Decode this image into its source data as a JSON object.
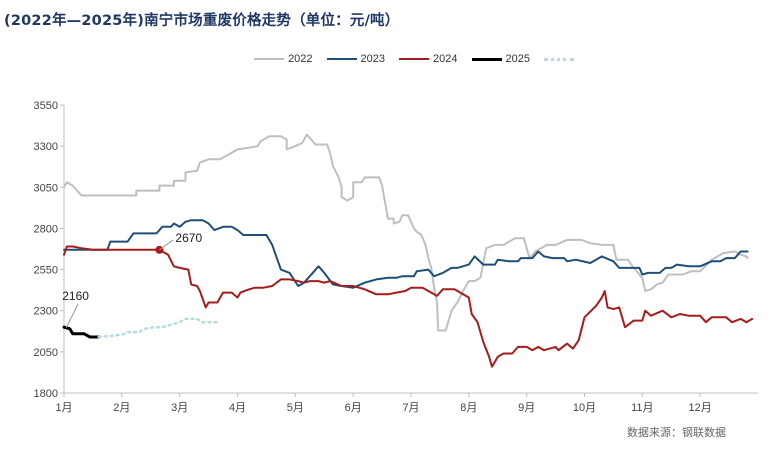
{
  "title": "(2022年—2025年)南宁市场重废价格走势（单位：元/吨）",
  "source": "数据来源：钢联数据",
  "chart_data": {
    "type": "line",
    "title": "(2022年—2025年)南宁市场重废价格走势（单位：元/吨）",
    "xlabel": "",
    "ylabel": "",
    "ylim": [
      1800,
      3550
    ],
    "yticks": [
      1800,
      2050,
      2300,
      2550,
      2800,
      3050,
      3300,
      3550
    ],
    "xlim": [
      1,
      13
    ],
    "xticks": [
      {
        "v": 1,
        "label": "1月"
      },
      {
        "v": 2,
        "label": "2月"
      },
      {
        "v": 3,
        "label": "3月"
      },
      {
        "v": 4,
        "label": "4月"
      },
      {
        "v": 5,
        "label": "5月"
      },
      {
        "v": 6,
        "label": "6月"
      },
      {
        "v": 7,
        "label": "7月"
      },
      {
        "v": 8,
        "label": "8月"
      },
      {
        "v": 9,
        "label": "9月"
      },
      {
        "v": 10,
        "label": "10月"
      },
      {
        "v": 11,
        "label": "11月"
      },
      {
        "v": 12,
        "label": "12月"
      }
    ],
    "grid": false,
    "legend_position": "top-right",
    "series": [
      {
        "name": "2022",
        "color": "#bfbfbf",
        "style": "solid",
        "points": [
          [
            1.0,
            3050
          ],
          [
            1.05,
            3080
          ],
          [
            1.15,
            3060
          ],
          [
            1.3,
            3000
          ],
          [
            1.6,
            3000
          ],
          [
            2.0,
            3000
          ],
          [
            2.25,
            3000
          ],
          [
            2.25,
            3030
          ],
          [
            2.5,
            3030
          ],
          [
            2.65,
            3030
          ],
          [
            2.65,
            3060
          ],
          [
            2.9,
            3060
          ],
          [
            2.9,
            3090
          ],
          [
            3.1,
            3090
          ],
          [
            3.1,
            3140
          ],
          [
            3.3,
            3150
          ],
          [
            3.35,
            3200
          ],
          [
            3.5,
            3220
          ],
          [
            3.7,
            3220
          ],
          [
            3.85,
            3250
          ],
          [
            4.0,
            3280
          ],
          [
            4.2,
            3290
          ],
          [
            4.35,
            3300
          ],
          [
            4.4,
            3330
          ],
          [
            4.55,
            3360
          ],
          [
            4.75,
            3360
          ],
          [
            4.85,
            3340
          ],
          [
            4.85,
            3280
          ],
          [
            5.0,
            3300
          ],
          [
            5.12,
            3320
          ],
          [
            5.2,
            3370
          ],
          [
            5.35,
            3310
          ],
          [
            5.45,
            3310
          ],
          [
            5.55,
            3310
          ],
          [
            5.6,
            3260
          ],
          [
            5.65,
            3180
          ],
          [
            5.75,
            3110
          ],
          [
            5.8,
            3050
          ],
          [
            5.8,
            2990
          ],
          [
            5.9,
            2970
          ],
          [
            6.0,
            2990
          ],
          [
            6.0,
            3080
          ],
          [
            6.15,
            3080
          ],
          [
            6.2,
            3110
          ],
          [
            6.3,
            3110
          ],
          [
            6.45,
            3110
          ],
          [
            6.5,
            3060
          ],
          [
            6.55,
            2960
          ],
          [
            6.6,
            2860
          ],
          [
            6.7,
            2860
          ],
          [
            6.7,
            2830
          ],
          [
            6.8,
            2840
          ],
          [
            6.85,
            2880
          ],
          [
            6.95,
            2880
          ],
          [
            7.0,
            2840
          ],
          [
            7.05,
            2800
          ],
          [
            7.1,
            2780
          ],
          [
            7.18,
            2760
          ],
          [
            7.25,
            2700
          ],
          [
            7.3,
            2620
          ],
          [
            7.35,
            2560
          ],
          [
            7.4,
            2440
          ],
          [
            7.45,
            2350
          ],
          [
            7.47,
            2180
          ],
          [
            7.6,
            2180
          ],
          [
            7.7,
            2300
          ],
          [
            7.8,
            2350
          ],
          [
            7.9,
            2420
          ],
          [
            8.0,
            2480
          ],
          [
            8.1,
            2480
          ],
          [
            8.2,
            2500
          ],
          [
            8.3,
            2680
          ],
          [
            8.45,
            2700
          ],
          [
            8.6,
            2700
          ],
          [
            8.8,
            2740
          ],
          [
            8.95,
            2740
          ],
          [
            9.05,
            2620
          ],
          [
            9.15,
            2660
          ],
          [
            9.35,
            2700
          ],
          [
            9.5,
            2700
          ],
          [
            9.7,
            2730
          ],
          [
            9.95,
            2730
          ],
          [
            10.1,
            2710
          ],
          [
            10.3,
            2700
          ],
          [
            10.5,
            2700
          ],
          [
            10.55,
            2610
          ],
          [
            10.75,
            2610
          ],
          [
            10.85,
            2560
          ],
          [
            11.0,
            2500
          ],
          [
            11.05,
            2420
          ],
          [
            11.15,
            2430
          ],
          [
            11.25,
            2460
          ],
          [
            11.35,
            2470
          ],
          [
            11.45,
            2520
          ],
          [
            11.7,
            2520
          ],
          [
            11.85,
            2540
          ],
          [
            12.0,
            2540
          ],
          [
            12.2,
            2610
          ],
          [
            12.4,
            2650
          ],
          [
            12.6,
            2660
          ],
          [
            12.7,
            2640
          ],
          [
            12.8,
            2630
          ],
          [
            12.82,
            2620
          ]
        ]
      },
      {
        "name": "2023",
        "color": "#1f4e79",
        "style": "solid",
        "points": [
          [
            1.0,
            2670
          ],
          [
            1.2,
            2670
          ],
          [
            1.5,
            2670
          ],
          [
            1.75,
            2670
          ],
          [
            1.8,
            2720
          ],
          [
            2.1,
            2720
          ],
          [
            2.2,
            2770
          ],
          [
            2.6,
            2770
          ],
          [
            2.7,
            2810
          ],
          [
            2.85,
            2810
          ],
          [
            2.9,
            2830
          ],
          [
            3.0,
            2810
          ],
          [
            3.1,
            2840
          ],
          [
            3.2,
            2850
          ],
          [
            3.4,
            2850
          ],
          [
            3.5,
            2830
          ],
          [
            3.6,
            2790
          ],
          [
            3.75,
            2810
          ],
          [
            3.9,
            2810
          ],
          [
            4.0,
            2790
          ],
          [
            4.1,
            2760
          ],
          [
            4.5,
            2760
          ],
          [
            4.6,
            2700
          ],
          [
            4.75,
            2550
          ],
          [
            4.9,
            2530
          ],
          [
            5.05,
            2450
          ],
          [
            5.15,
            2470
          ],
          [
            5.3,
            2530
          ],
          [
            5.4,
            2570
          ],
          [
            5.5,
            2530
          ],
          [
            5.65,
            2460
          ],
          [
            5.8,
            2450
          ],
          [
            6.0,
            2440
          ],
          [
            6.2,
            2470
          ],
          [
            6.4,
            2490
          ],
          [
            6.6,
            2500
          ],
          [
            6.75,
            2500
          ],
          [
            6.85,
            2510
          ],
          [
            7.05,
            2510
          ],
          [
            7.1,
            2540
          ],
          [
            7.3,
            2550
          ],
          [
            7.4,
            2510
          ],
          [
            7.55,
            2530
          ],
          [
            7.7,
            2560
          ],
          [
            7.8,
            2560
          ],
          [
            8.0,
            2580
          ],
          [
            8.1,
            2630
          ],
          [
            8.25,
            2580
          ],
          [
            8.45,
            2580
          ],
          [
            8.5,
            2610
          ],
          [
            8.7,
            2600
          ],
          [
            8.85,
            2600
          ],
          [
            8.9,
            2620
          ],
          [
            9.1,
            2620
          ],
          [
            9.2,
            2660
          ],
          [
            9.3,
            2630
          ],
          [
            9.45,
            2620
          ],
          [
            9.65,
            2620
          ],
          [
            9.7,
            2600
          ],
          [
            9.85,
            2610
          ],
          [
            10.1,
            2590
          ],
          [
            10.3,
            2630
          ],
          [
            10.5,
            2600
          ],
          [
            10.6,
            2560
          ],
          [
            10.75,
            2560
          ],
          [
            10.95,
            2560
          ],
          [
            11.0,
            2520
          ],
          [
            11.1,
            2530
          ],
          [
            11.3,
            2530
          ],
          [
            11.4,
            2560
          ],
          [
            11.5,
            2560
          ],
          [
            11.6,
            2580
          ],
          [
            11.8,
            2570
          ],
          [
            12.0,
            2570
          ],
          [
            12.2,
            2600
          ],
          [
            12.35,
            2600
          ],
          [
            12.45,
            2620
          ],
          [
            12.6,
            2620
          ],
          [
            12.7,
            2660
          ],
          [
            12.82,
            2660
          ]
        ]
      },
      {
        "name": "2024",
        "color": "#a61c1c",
        "style": "solid",
        "points": [
          [
            1.0,
            2640
          ],
          [
            1.05,
            2690
          ],
          [
            1.15,
            2690
          ],
          [
            1.3,
            2680
          ],
          [
            1.5,
            2670
          ],
          [
            1.75,
            2670
          ],
          [
            2.0,
            2670
          ],
          [
            2.3,
            2670
          ],
          [
            2.6,
            2670
          ],
          [
            2.65,
            2670
          ],
          [
            2.8,
            2640
          ],
          [
            2.9,
            2570
          ],
          [
            3.0,
            2560
          ],
          [
            3.15,
            2550
          ],
          [
            3.2,
            2460
          ],
          [
            3.3,
            2450
          ],
          [
            3.35,
            2420
          ],
          [
            3.45,
            2320
          ],
          [
            3.5,
            2350
          ],
          [
            3.65,
            2350
          ],
          [
            3.75,
            2410
          ],
          [
            3.9,
            2410
          ],
          [
            4.0,
            2380
          ],
          [
            4.05,
            2410
          ],
          [
            4.2,
            2430
          ],
          [
            4.3,
            2440
          ],
          [
            4.45,
            2440
          ],
          [
            4.6,
            2450
          ],
          [
            4.75,
            2490
          ],
          [
            4.9,
            2490
          ],
          [
            5.05,
            2480
          ],
          [
            5.15,
            2470
          ],
          [
            5.25,
            2480
          ],
          [
            5.4,
            2480
          ],
          [
            5.5,
            2470
          ],
          [
            5.6,
            2480
          ],
          [
            5.8,
            2450
          ],
          [
            6.0,
            2450
          ],
          [
            6.2,
            2430
          ],
          [
            6.4,
            2400
          ],
          [
            6.6,
            2400
          ],
          [
            6.75,
            2410
          ],
          [
            6.9,
            2420
          ],
          [
            7.0,
            2440
          ],
          [
            7.2,
            2440
          ],
          [
            7.35,
            2410
          ],
          [
            7.45,
            2390
          ],
          [
            7.55,
            2430
          ],
          [
            7.75,
            2430
          ],
          [
            7.9,
            2400
          ],
          [
            8.0,
            2380
          ],
          [
            8.05,
            2280
          ],
          [
            8.15,
            2230
          ],
          [
            8.25,
            2110
          ],
          [
            8.35,
            2020
          ],
          [
            8.4,
            1960
          ],
          [
            8.5,
            2020
          ],
          [
            8.6,
            2040
          ],
          [
            8.75,
            2040
          ],
          [
            8.85,
            2080
          ],
          [
            9.0,
            2080
          ],
          [
            9.1,
            2060
          ],
          [
            9.2,
            2080
          ],
          [
            9.3,
            2060
          ],
          [
            9.5,
            2080
          ],
          [
            9.55,
            2060
          ],
          [
            9.7,
            2100
          ],
          [
            9.8,
            2070
          ],
          [
            9.9,
            2120
          ],
          [
            10.0,
            2260
          ],
          [
            10.2,
            2330
          ],
          [
            10.3,
            2380
          ],
          [
            10.35,
            2420
          ],
          [
            10.4,
            2320
          ],
          [
            10.5,
            2310
          ],
          [
            10.6,
            2320
          ],
          [
            10.7,
            2200
          ],
          [
            10.85,
            2240
          ],
          [
            11.0,
            2240
          ],
          [
            11.05,
            2300
          ],
          [
            11.15,
            2270
          ],
          [
            11.35,
            2300
          ],
          [
            11.5,
            2260
          ],
          [
            11.65,
            2280
          ],
          [
            11.8,
            2270
          ],
          [
            12.0,
            2270
          ],
          [
            12.1,
            2230
          ],
          [
            12.2,
            2260
          ],
          [
            12.45,
            2260
          ],
          [
            12.55,
            2230
          ],
          [
            12.7,
            2250
          ],
          [
            12.8,
            2230
          ],
          [
            12.9,
            2250
          ]
        ]
      },
      {
        "name": "2025",
        "color": "#000000",
        "style": "solid",
        "points": [
          [
            1.0,
            2200
          ],
          [
            1.1,
            2190
          ],
          [
            1.15,
            2160
          ],
          [
            1.35,
            2160
          ],
          [
            1.45,
            2140
          ],
          [
            1.6,
            2140
          ]
        ]
      },
      {
        "name": "",
        "color": "#b4dde0",
        "style": "dotted",
        "points": [
          [
            1.6,
            2140
          ],
          [
            1.9,
            2150
          ],
          [
            2.05,
            2160
          ],
          [
            2.1,
            2170
          ],
          [
            2.3,
            2170
          ],
          [
            2.4,
            2190
          ],
          [
            2.55,
            2200
          ],
          [
            2.7,
            2200
          ],
          [
            2.8,
            2210
          ],
          [
            3.0,
            2230
          ],
          [
            3.1,
            2250
          ],
          [
            3.3,
            2250
          ],
          [
            3.4,
            2230
          ],
          [
            3.7,
            2230
          ]
        ]
      }
    ],
    "annotations": [
      {
        "label": "2670",
        "series": "2024",
        "x": 2.65,
        "y": 2670
      },
      {
        "label": "2160",
        "series": "2025",
        "x": 1.35,
        "y": 2160
      }
    ]
  }
}
